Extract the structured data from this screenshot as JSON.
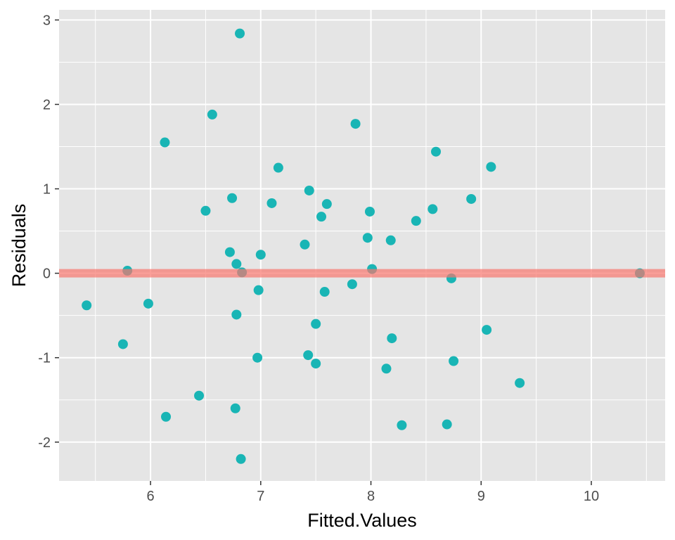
{
  "chart_data": {
    "type": "scatter",
    "title": "",
    "xlabel": "Fitted.Values",
    "ylabel": "Residuals",
    "xlim": [
      5.17,
      10.67
    ],
    "ylim": [
      -2.46,
      3.12
    ],
    "x_major_ticks": [
      6,
      7,
      8,
      9,
      10
    ],
    "x_minor_ticks": [
      5.5,
      6.5,
      7.5,
      8.5,
      9.5,
      10.5
    ],
    "y_major_ticks": [
      -2,
      -1,
      0,
      1,
      2,
      3
    ],
    "y_minor_ticks": [
      -1.5,
      -0.5,
      0.5,
      1.5,
      2.5
    ],
    "x_tick_labels": [
      "6",
      "7",
      "8",
      "9",
      "10"
    ],
    "y_tick_labels": [
      "-2",
      "-1",
      "0",
      "1",
      "2",
      "3"
    ],
    "grid": true,
    "reference_line": {
      "y": 0,
      "color": "#F8766D"
    },
    "colors": {
      "points": "#19B5B5",
      "panel": "#E5E5E5",
      "grid": "#FFFFFF",
      "reference": "#F8766D"
    },
    "points": [
      {
        "x": 6.81,
        "y": 2.84
      },
      {
        "x": 6.56,
        "y": 1.88
      },
      {
        "x": 7.86,
        "y": 1.77
      },
      {
        "x": 6.13,
        "y": 1.55
      },
      {
        "x": 8.59,
        "y": 1.44
      },
      {
        "x": 9.09,
        "y": 1.26
      },
      {
        "x": 7.16,
        "y": 1.25
      },
      {
        "x": 7.44,
        "y": 0.98
      },
      {
        "x": 6.74,
        "y": 0.89
      },
      {
        "x": 8.91,
        "y": 0.88
      },
      {
        "x": 7.1,
        "y": 0.83
      },
      {
        "x": 7.6,
        "y": 0.82
      },
      {
        "x": 8.56,
        "y": 0.76
      },
      {
        "x": 6.5,
        "y": 0.74
      },
      {
        "x": 7.99,
        "y": 0.73
      },
      {
        "x": 7.55,
        "y": 0.67
      },
      {
        "x": 8.41,
        "y": 0.62
      },
      {
        "x": 7.97,
        "y": 0.42
      },
      {
        "x": 8.18,
        "y": 0.39
      },
      {
        "x": 7.4,
        "y": 0.34
      },
      {
        "x": 6.72,
        "y": 0.25
      },
      {
        "x": 7.0,
        "y": 0.22
      },
      {
        "x": 6.78,
        "y": 0.11
      },
      {
        "x": 8.01,
        "y": 0.05
      },
      {
        "x": 5.79,
        "y": 0.03
      },
      {
        "x": 6.83,
        "y": 0.01
      },
      {
        "x": 10.44,
        "y": 0.0
      },
      {
        "x": 8.73,
        "y": -0.06
      },
      {
        "x": 7.83,
        "y": -0.13
      },
      {
        "x": 6.98,
        "y": -0.2
      },
      {
        "x": 7.58,
        "y": -0.22
      },
      {
        "x": 5.98,
        "y": -0.36
      },
      {
        "x": 5.42,
        "y": -0.38
      },
      {
        "x": 6.78,
        "y": -0.49
      },
      {
        "x": 7.5,
        "y": -0.6
      },
      {
        "x": 9.05,
        "y": -0.67
      },
      {
        "x": 8.19,
        "y": -0.77
      },
      {
        "x": 5.75,
        "y": -0.84
      },
      {
        "x": 7.43,
        "y": -0.97
      },
      {
        "x": 6.97,
        "y": -1.0
      },
      {
        "x": 8.75,
        "y": -1.04
      },
      {
        "x": 7.5,
        "y": -1.07
      },
      {
        "x": 8.14,
        "y": -1.13
      },
      {
        "x": 9.35,
        "y": -1.3
      },
      {
        "x": 6.44,
        "y": -1.45
      },
      {
        "x": 6.77,
        "y": -1.6
      },
      {
        "x": 6.14,
        "y": -1.7
      },
      {
        "x": 8.69,
        "y": -1.79
      },
      {
        "x": 8.28,
        "y": -1.8
      },
      {
        "x": 6.82,
        "y": -2.2
      }
    ]
  }
}
